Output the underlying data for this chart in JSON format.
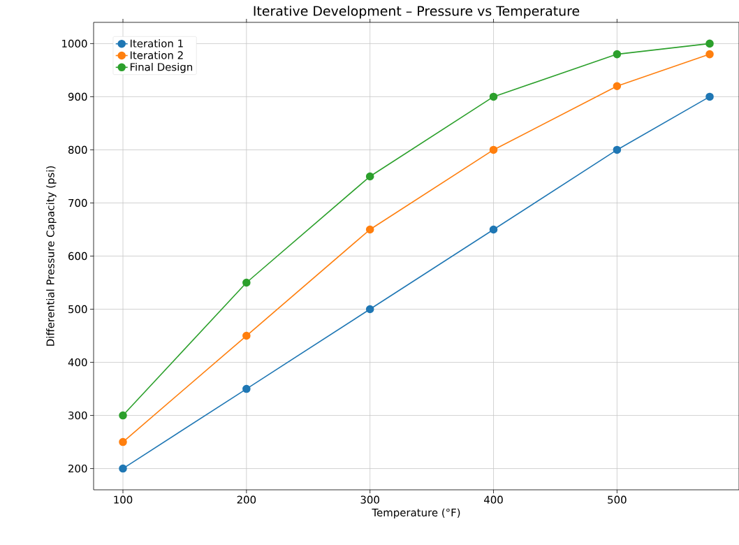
{
  "chart_data": {
    "type": "line",
    "title": "Iterative Development – Pressure vs Temperature",
    "xlabel": "Temperature (°F)",
    "ylabel": "Differential Pressure Capacity (psi)",
    "x": [
      100,
      200,
      300,
      400,
      500,
      575
    ],
    "series": [
      {
        "name": "Iteration 1",
        "color": "#1f77b4",
        "values": [
          200,
          350,
          500,
          650,
          800,
          900
        ]
      },
      {
        "name": "Iteration 2",
        "color": "#ff7f0e",
        "values": [
          250,
          450,
          650,
          800,
          920,
          980
        ]
      },
      {
        "name": "Final Design",
        "color": "#2ca02c",
        "values": [
          300,
          550,
          750,
          900,
          980,
          1000
        ]
      }
    ],
    "xlim": [
      76.25,
      598.75
    ],
    "ylim": [
      160,
      1040
    ],
    "xticks": [
      100,
      200,
      300,
      400,
      500
    ],
    "yticks": [
      200,
      300,
      400,
      500,
      600,
      700,
      800,
      900,
      1000
    ],
    "grid": true,
    "legend": "top left",
    "marker": "circle",
    "line_style": "solid"
  }
}
